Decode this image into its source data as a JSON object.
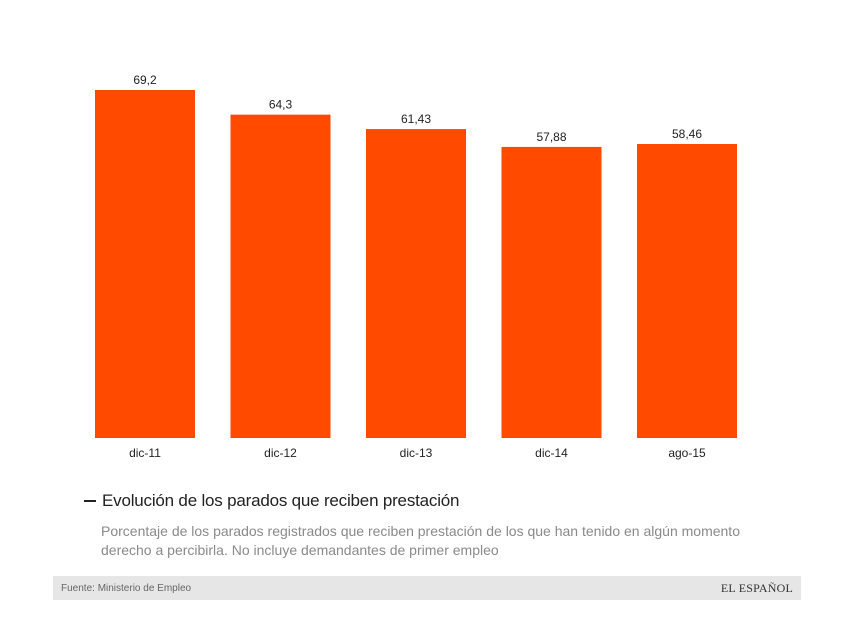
{
  "chart_data": {
    "type": "bar",
    "categories": [
      "dic-11",
      "dic-12",
      "dic-13",
      "dic-14",
      "ago-15"
    ],
    "values": [
      69.2,
      64.3,
      61.43,
      57.88,
      58.46
    ],
    "value_labels": [
      "69,2",
      "64,3",
      "61,43",
      "57,88",
      "58,46"
    ],
    "title": "Evolución de los parados que reciben prestación",
    "subtitle": "Porcentaje de los parados registrados que reciben prestación de los que han tenido en algún momento derecho a percibirla. No incluye demandantes de primer empleo",
    "xlabel": "",
    "ylabel": "",
    "ylim": [
      0,
      69.2
    ],
    "grid": false,
    "bar_color": "#ff4a00"
  },
  "footer": {
    "source": "Fuente: Ministerio de Empleo",
    "brand": "EL ESPAÑOL"
  }
}
